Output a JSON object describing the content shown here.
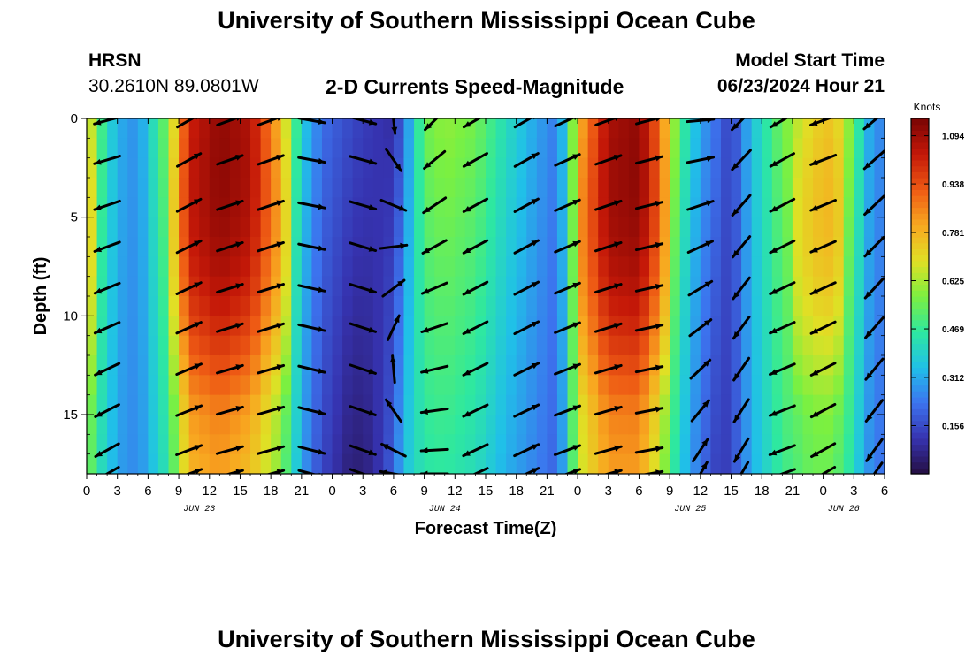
{
  "header": {
    "title": "University of Southern Mississippi Ocean Cube",
    "station": "HRSN",
    "coords": "30.2610N  89.0801W",
    "subtitle": "2-D Currents Speed-Magnitude",
    "model_start_label": "Model Start Time",
    "model_start_value": "06/23/2024 Hour 21"
  },
  "footer": {
    "title": "University of Southern Mississippi Ocean Cube"
  },
  "chart_data": {
    "type": "heatmap",
    "title": "2-D Currents Speed-Magnitude",
    "xlabel": "Forecast Time(Z)",
    "ylabel": "Depth (ft)",
    "x_units": "hours since Jun 23 00Z",
    "xlim": [
      0,
      78
    ],
    "ylim": [
      0,
      18
    ],
    "x_tick_values": [
      0,
      3,
      6,
      9,
      12,
      15,
      18,
      21,
      24,
      27,
      30,
      33,
      36,
      39,
      42,
      45,
      48,
      51,
      54,
      57,
      60,
      63,
      66,
      69,
      72,
      75,
      78
    ],
    "x_tick_labels": [
      "0",
      "3",
      "6",
      "9",
      "12",
      "15",
      "18",
      "21",
      "0",
      "3",
      "6",
      "9",
      "12",
      "15",
      "18",
      "21",
      "0",
      "3",
      "6",
      "9",
      "12",
      "15",
      "18",
      "21",
      "0",
      "3",
      "6"
    ],
    "y_ticks": [
      0,
      5,
      10,
      15
    ],
    "y_tick_labels": [
      "0",
      "5",
      "10",
      "15"
    ],
    "date_labels": [
      {
        "text": "JUN 23",
        "hour": 11
      },
      {
        "text": "JUN 24",
        "hour": 35
      },
      {
        "text": "JUN 25",
        "hour": 59
      },
      {
        "text": "JUN 26",
        "hour": 74
      }
    ],
    "colorbar": {
      "title": "Knots",
      "min": 0,
      "max": 1.15,
      "ticks": [
        0.156,
        0.312,
        0.469,
        0.625,
        0.781,
        0.938,
        1.094
      ],
      "tick_labels": [
        "0.156",
        "0.312",
        "0.469",
        "0.625",
        "0.781",
        "0.938",
        "1.094"
      ],
      "colors": [
        "#240d40",
        "#3633b0",
        "#3c73ee",
        "#20c0e8",
        "#2ee8a0",
        "#7cf040",
        "#e0e025",
        "#f8a820",
        "#ee5a14",
        "#c41808",
        "#7a0404"
      ]
    },
    "speed_series": {
      "hours": [
        0,
        1,
        2,
        3,
        5,
        8,
        10,
        13,
        16,
        19,
        21,
        23,
        26,
        28,
        30,
        31,
        33,
        35,
        38,
        41,
        44,
        46,
        47,
        48,
        51,
        54,
        56,
        58,
        60,
        62,
        63,
        65,
        68,
        71,
        73,
        75,
        76,
        77,
        78
      ],
      "knots_surface": [
        0.72,
        0.55,
        0.42,
        0.32,
        0.27,
        0.58,
        1.0,
        1.1,
        1.05,
        0.75,
        0.38,
        0.22,
        0.15,
        0.12,
        0.1,
        0.22,
        0.55,
        0.6,
        0.56,
        0.42,
        0.3,
        0.24,
        0.42,
        0.75,
        1.06,
        1.1,
        0.88,
        0.5,
        0.3,
        0.2,
        0.13,
        0.35,
        0.56,
        0.7,
        0.74,
        0.55,
        0.35,
        0.28,
        0.25
      ],
      "knots_bottom": [
        0.6,
        0.45,
        0.38,
        0.3,
        0.26,
        0.45,
        0.78,
        0.82,
        0.76,
        0.58,
        0.3,
        0.15,
        0.05,
        0.08,
        0.2,
        0.35,
        0.45,
        0.46,
        0.42,
        0.32,
        0.25,
        0.2,
        0.38,
        0.65,
        0.82,
        0.82,
        0.65,
        0.38,
        0.22,
        0.12,
        0.15,
        0.32,
        0.48,
        0.55,
        0.55,
        0.42,
        0.3,
        0.25,
        0.22
      ]
    },
    "vectors": {
      "description": "arrows show current direction at depth, angle in degrees counterclockwise from east",
      "columns": [
        {
          "hour": 2,
          "angle_surface": 195,
          "angle_bottom": 210
        },
        {
          "hour": 10,
          "angle_surface": 30,
          "angle_bottom": 20
        },
        {
          "hour": 14,
          "angle_surface": 20,
          "angle_bottom": 15
        },
        {
          "hour": 18,
          "angle_surface": 20,
          "angle_bottom": 15
        },
        {
          "hour": 22,
          "angle_surface": -10,
          "angle_bottom": -15
        },
        {
          "hour": 27,
          "angle_surface": -15,
          "angle_bottom": -20
        },
        {
          "hour": 30,
          "angle_surface": -85,
          "angle_bottom": 170
        },
        {
          "hour": 34,
          "angle_surface": 225,
          "angle_bottom": 180
        },
        {
          "hour": 38,
          "angle_surface": 210,
          "angle_bottom": 205
        },
        {
          "hour": 43,
          "angle_surface": 30,
          "angle_bottom": 25
        },
        {
          "hour": 47,
          "angle_surface": 25,
          "angle_bottom": 20
        },
        {
          "hour": 51,
          "angle_surface": 20,
          "angle_bottom": 15
        },
        {
          "hour": 55,
          "angle_surface": 15,
          "angle_bottom": 10
        },
        {
          "hour": 60,
          "angle_surface": 5,
          "angle_bottom": 60
        },
        {
          "hour": 64,
          "angle_surface": 225,
          "angle_bottom": 240
        },
        {
          "hour": 68,
          "angle_surface": 210,
          "angle_bottom": 200
        },
        {
          "hour": 72,
          "angle_surface": 200,
          "angle_bottom": 210
        },
        {
          "hour": 77,
          "angle_surface": 220,
          "angle_bottom": 235
        }
      ]
    }
  }
}
